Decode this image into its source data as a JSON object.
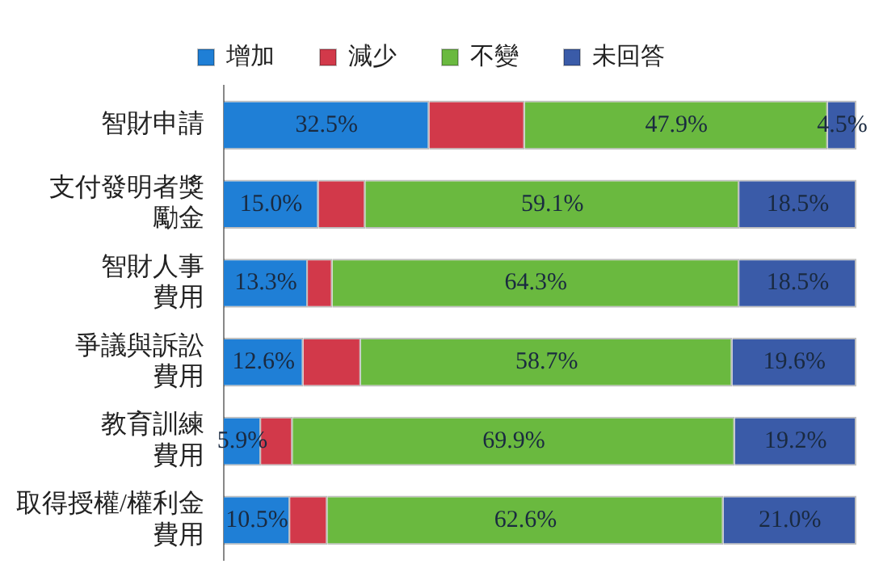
{
  "chart_data": {
    "type": "bar",
    "orientation": "horizontal",
    "stacked": true,
    "categories": [
      "智財申請",
      "支付發明者獎勵金",
      "智財人事費用",
      "爭議與訴訟費用",
      "教育訓練費用",
      "取得授權/權利金費用"
    ],
    "xlim": [
      0,
      100
    ],
    "tick_labels": "y",
    "legend": "top",
    "grid": false,
    "series": [
      {
        "name": "增加",
        "color": "#1f7fd6",
        "values": [
          32.5,
          15.0,
          13.3,
          12.6,
          5.9,
          10.5
        ],
        "value_labels": [
          "32.5%",
          "15.0%",
          "13.3%",
          "12.6%",
          "5.9%",
          "10.5%"
        ]
      },
      {
        "name": "減少",
        "color": "#d2394a",
        "values": [
          15.1,
          7.4,
          3.9,
          9.1,
          5.0,
          5.9
        ],
        "value_labels": [
          null,
          null,
          null,
          null,
          null,
          null
        ]
      },
      {
        "name": "不變",
        "color": "#6ab93f",
        "values": [
          47.9,
          59.1,
          64.3,
          58.7,
          69.9,
          62.6
        ],
        "value_labels": [
          "47.9%",
          "59.1%",
          "64.3%",
          "58.7%",
          "69.9%",
          "62.6%"
        ]
      },
      {
        "name": "未回答",
        "color": "#3a5ba8",
        "values": [
          4.5,
          18.5,
          18.5,
          19.6,
          19.2,
          21.0
        ],
        "value_labels": [
          "4.5%",
          "18.5%",
          "18.5%",
          "19.6%",
          "19.2%",
          "21.0%"
        ]
      }
    ]
  }
}
